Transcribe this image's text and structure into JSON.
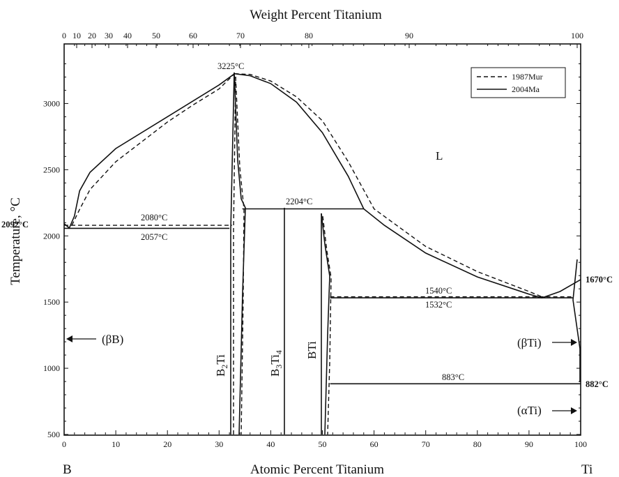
{
  "chart_data": {
    "type": "phase-diagram",
    "xlabel_bottom": "Atomic Percent Titanium",
    "xlabel_top": "Weight Percent Titanium",
    "ylabel": "Temperature, °C",
    "xlim": [
      0,
      100
    ],
    "ylim": [
      500,
      3450
    ],
    "x_ticks": [
      "0",
      "10",
      "20",
      "30",
      "40",
      "50",
      "60",
      "70",
      "80",
      "90",
      "100"
    ],
    "y_ticks": [
      "500",
      "1000",
      "1500",
      "2000",
      "2500",
      "3000"
    ],
    "top_ticks": [
      "0",
      "10",
      "20",
      "30",
      "40",
      "50",
      "60",
      "70",
      "80",
      "90",
      "100"
    ],
    "end_left": "B",
    "end_right": "Ti",
    "legend": [
      {
        "label": "1987Mur",
        "style": "dashed"
      },
      {
        "label": "2004Ma",
        "style": "solid"
      }
    ],
    "regions": {
      "liquid": "L",
      "beta_b": "(βB)",
      "beta_ti": "(βTi)",
      "alpha_ti": "(αTi)"
    },
    "phases": {
      "b2ti_main": "B",
      "b2ti_sub": "2",
      "b2ti_tail": "Ti",
      "b3ti4_main": "B",
      "b3ti4_sub1": "3",
      "b3ti4_mid": "Ti",
      "b3ti4_sub2": "4",
      "bti": "BTi"
    },
    "temperatures": {
      "max": "3225°C",
      "b_melt": "2092°C",
      "eut_1987": "2080°C",
      "eut_2004": "2057°C",
      "peritectic": "2204°C",
      "eut_ti_1987": "1540°C",
      "eut_ti_2004": "1532°C",
      "ti_melt": "1670°C",
      "eutectoid": "883°C",
      "ti_transform": "882°C"
    },
    "solid_curves": {
      "liquidus_b_side": [
        [
          0,
          2092
        ],
        [
          1,
          2060
        ],
        [
          2,
          2150
        ],
        [
          3,
          2340
        ],
        [
          5,
          2480
        ],
        [
          10,
          2660
        ],
        [
          20,
          2900
        ],
        [
          25,
          3020
        ],
        [
          30,
          3140
        ],
        [
          33,
          3225
        ]
      ],
      "liquidus_ti_side": [
        [
          33,
          3225
        ],
        [
          36,
          3210
        ],
        [
          40,
          3150
        ],
        [
          45,
          3010
        ],
        [
          50,
          2780
        ],
        [
          55,
          2450
        ],
        [
          58,
          2204
        ],
        [
          62,
          2080
        ],
        [
          70,
          1870
        ],
        [
          80,
          1690
        ],
        [
          90,
          1560
        ],
        [
          92.5,
          1532
        ],
        [
          96,
          1580
        ],
        [
          100,
          1670
        ]
      ],
      "eutectic_b": [
        [
          0,
          2057
        ],
        [
          32,
          2057
        ]
      ],
      "peritectic": [
        [
          34.5,
          2204
        ],
        [
          58,
          2204
        ]
      ],
      "eutectic_ti": [
        [
          51.5,
          1532
        ],
        [
          98.5,
          1532
        ]
      ],
      "eutectoid": [
        [
          51.5,
          883
        ],
        [
          100,
          883
        ]
      ]
    },
    "dashed_curves": {
      "liquidus_b_side": [
        [
          1.5,
          2080
        ],
        [
          3,
          2200
        ],
        [
          5,
          2350
        ],
        [
          10,
          2560
        ],
        [
          20,
          2860
        ],
        [
          25,
          2990
        ],
        [
          30,
          3110
        ],
        [
          33,
          3225
        ]
      ],
      "liquidus_ti_side": [
        [
          33,
          3225
        ],
        [
          36,
          3220
        ],
        [
          40,
          3170
        ],
        [
          45,
          3050
        ],
        [
          50,
          2870
        ],
        [
          55,
          2560
        ],
        [
          60,
          2204
        ],
        [
          70,
          1920
        ],
        [
          80,
          1730
        ],
        [
          90,
          1580
        ],
        [
          92.5,
          1540
        ]
      ],
      "eutectic_b": [
        [
          0,
          2080
        ],
        [
          32.5,
          2080
        ]
      ],
      "eutectic_ti": [
        [
          51.5,
          1540
        ],
        [
          98.5,
          1540
        ]
      ]
    }
  }
}
